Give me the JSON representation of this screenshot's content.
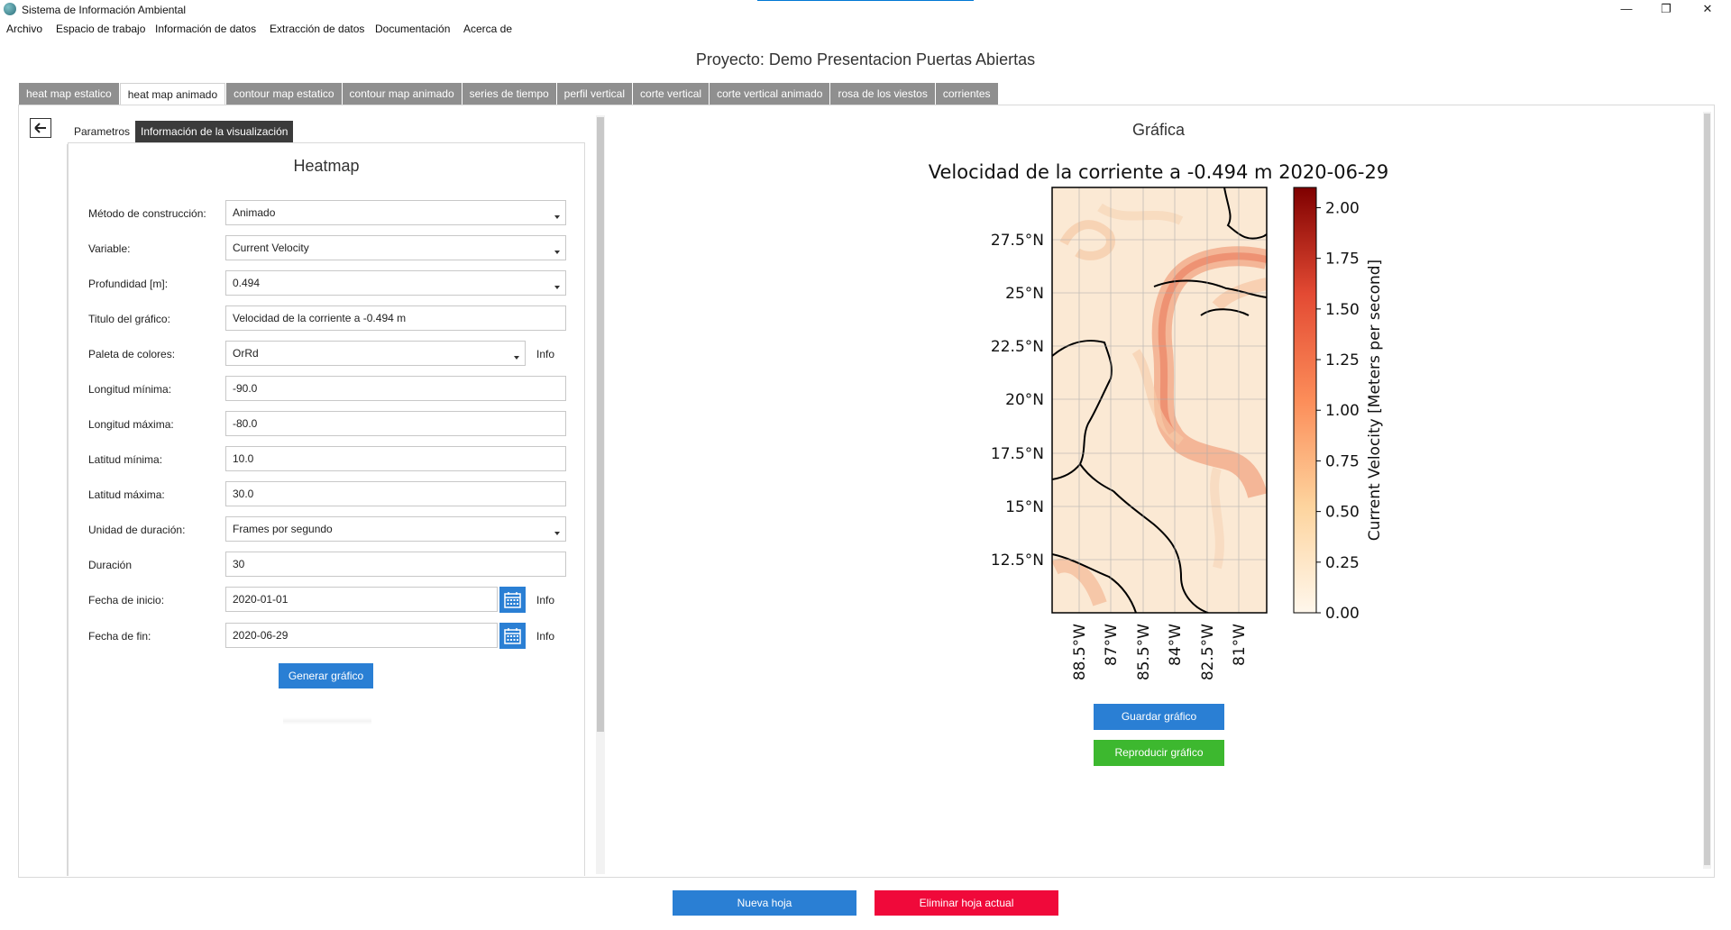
{
  "window": {
    "title": "Sistema de Información Ambiental",
    "minimize": "—",
    "maximize": "❐",
    "close": "✕"
  },
  "menu": [
    "Archivo",
    "Espacio de trabajo",
    "Información de datos",
    "Extracción de datos",
    "Documentación",
    "Acerca de"
  ],
  "project_title": "Proyecto: Demo Presentacion Puertas Abiertas",
  "tabs": [
    "heat map estatico",
    "heat map animado",
    "contour map estatico",
    "contour map animado",
    "series de tiempo",
    "perfil vertical",
    "corte vertical",
    "corte vertical animado",
    "rosa de los viestos",
    "corrientes"
  ],
  "active_tab": "heat map animado",
  "subtabs": [
    "Parametros",
    "Información de la visualización"
  ],
  "form": {
    "title": "Heatmap",
    "fields": [
      {
        "label": "Método de construcción:",
        "value": "Animado"
      },
      {
        "label": "Variable:",
        "value": "Current Velocity"
      },
      {
        "label": "Profundidad [m]:",
        "value": "0.494"
      },
      {
        "label": "Titulo del gráfico:",
        "value": "Velocidad de la corriente a -0.494 m"
      },
      {
        "label": "Paleta de colores:",
        "value": "OrRd"
      },
      {
        "label": "Longitud mínima:",
        "value": "-90.0"
      },
      {
        "label": "Longitud máxima:",
        "value": "-80.0"
      },
      {
        "label": "Latitud mínima:",
        "value": "10.0"
      },
      {
        "label": "Latitud máxima:",
        "value": "30.0"
      },
      {
        "label": "Unidad de duración:",
        "value": "Frames por segundo"
      },
      {
        "label": "Duración",
        "value": "30"
      },
      {
        "label": "Fecha de inicio:",
        "value": "2020-01-01"
      },
      {
        "label": "Fecha de fin:",
        "value": "2020-06-29"
      }
    ],
    "info_label": "Info",
    "generate_button": "Generar gráfico"
  },
  "right_panel": {
    "title": "Gráfica",
    "save_button": "Guardar gráfico",
    "play_button": "Reproducir gráfico"
  },
  "bottom": {
    "new_sheet": "Nueva hoja",
    "delete_sheet": "Eliminar hoja actual"
  },
  "colors": {
    "tab_inactive": "#8f8f8f",
    "primary_blue": "#2a7fd4",
    "green": "#3db82f",
    "red": "#f0093a"
  },
  "chart_data": {
    "type": "heatmap",
    "title": "Velocidad de la corriente a -0.494 m 2020-06-29",
    "y_ticks": [
      "27.5°N",
      "25°N",
      "22.5°N",
      "20°N",
      "17.5°N",
      "15°N",
      "12.5°N"
    ],
    "x_ticks": [
      "88.5°W",
      "87°W",
      "85.5°W",
      "84°W",
      "82.5°W",
      "81°W"
    ],
    "colorbar": {
      "label": "Current Velocity [Meters per second]",
      "ticks": [
        "0.00",
        "0.25",
        "0.50",
        "0.75",
        "1.00",
        "1.25",
        "1.50",
        "1.75",
        "2.00"
      ],
      "range": [
        0,
        2.1
      ],
      "colormap": "OrRd"
    },
    "lon_range": [
      -90,
      -80
    ],
    "lat_range": [
      10,
      30
    ]
  }
}
